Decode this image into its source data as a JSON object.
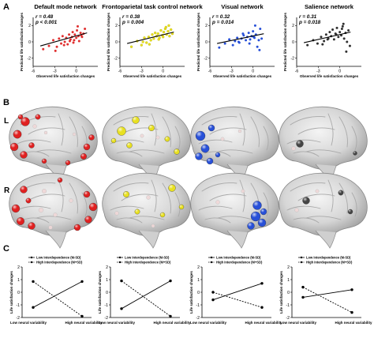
{
  "panel_labels": [
    "A",
    "B",
    "C"
  ],
  "hemisphere_labels": [
    "L",
    "R"
  ],
  "panel_a": {
    "x_label": "Observed life satisfaction changes",
    "y_label": "Predicted life satisfaction changes",
    "networks": [
      {
        "title": "Default mode network",
        "r_text": "r = 0.48",
        "p_text": "p < 0.001",
        "color": "#e03030"
      },
      {
        "title": "Frontoparietal task control network",
        "r_text": "r = 0.38",
        "p_text": "p = 0.004",
        "color": "#e8e020"
      },
      {
        "title": "Visual network",
        "r_text": "r = 0.32",
        "p_text": "p = 0.014",
        "color": "#2850d8"
      },
      {
        "title": "Salience network",
        "r_text": "r = 0.31",
        "p_text": "p = 0.018",
        "color": "#303030"
      }
    ]
  },
  "panel_b": {
    "node_colors": [
      "#e02020",
      "#e8e020",
      "#2850d8",
      "#444444"
    ]
  },
  "panel_c": {
    "y_label": "Life satisfaction changes",
    "x_tick_labels": [
      "Low neural variability",
      "High neural variability"
    ],
    "legend_low": "Low interdependence (M-SD)",
    "legend_high": "High interdependence (M+SD)"
  },
  "chart_data": [
    {
      "type": "scatter",
      "title": "Default mode network",
      "xlabel": "Observed life satisfaction changes",
      "ylabel": "Predicted life satisfaction changes",
      "xlim": [
        -6,
        3
      ],
      "ylim": [
        -3,
        3
      ],
      "x_ticks": [
        -6,
        -3,
        0
      ],
      "y_ticks": [
        2,
        0,
        -2
      ],
      "x": [
        -4.6,
        -3.8,
        -3.2,
        -2.7,
        -2.4,
        -2.1,
        -1.9,
        -1.6,
        -1.4,
        -1.2,
        -1.0,
        -0.8,
        -0.6,
        -0.5,
        -0.3,
        -0.2,
        0.0,
        0.1,
        0.3,
        0.4,
        0.6,
        0.8,
        1.0,
        1.2,
        -1.7,
        -0.9,
        0.2,
        -2.9,
        -0.4,
        0.7
      ],
      "y": [
        -0.9,
        -0.5,
        0.2,
        -0.6,
        0.4,
        -0.2,
        0.7,
        0.0,
        0.5,
        -0.3,
        0.9,
        0.3,
        0.6,
        1.2,
        0.2,
        0.9,
        0.5,
        1.4,
        0.7,
        0.1,
        1.1,
        0.6,
        1.0,
        1.6,
        -0.4,
        0.1,
        1.9,
        -1.1,
        -0.1,
        0.8
      ],
      "fit_line": {
        "x": [
          -5,
          1.5
        ],
        "y": [
          -0.5,
          1.1
        ]
      }
    },
    {
      "type": "scatter",
      "title": "Frontoparietal task control network",
      "xlabel": "Observed life satisfaction changes",
      "ylabel": "Predicted life satisfaction changes",
      "xlim": [
        -6,
        3
      ],
      "ylim": [
        -3,
        3
      ],
      "x_ticks": [
        -6,
        -3,
        0
      ],
      "y_ticks": [
        2,
        0,
        -2
      ],
      "x": [
        -4.4,
        -3.6,
        -3.0,
        -2.6,
        -2.3,
        -2.0,
        -1.7,
        -1.5,
        -1.3,
        -1.1,
        -0.9,
        -0.7,
        -0.5,
        -0.3,
        -0.1,
        0.1,
        0.3,
        0.5,
        0.7,
        0.9,
        1.1,
        1.3,
        -1.9,
        -0.6,
        0.4,
        -2.8,
        0.0,
        0.8
      ],
      "y": [
        -0.6,
        0.1,
        -0.4,
        0.5,
        -0.1,
        0.6,
        0.2,
        0.9,
        0.4,
        1.1,
        0.7,
        1.0,
        0.5,
        1.4,
        0.8,
        1.2,
        1.6,
        0.9,
        1.3,
        0.7,
        1.5,
        1.0,
        -0.3,
        0.3,
        1.8,
        0.0,
        0.6,
        2.0
      ],
      "fit_line": {
        "x": [
          -5,
          1.5
        ],
        "y": [
          -0.2,
          1.2
        ]
      }
    },
    {
      "type": "scatter",
      "title": "Visual network",
      "xlabel": "Observed life satisfaction changes",
      "ylabel": "Predicted life satisfaction changes",
      "xlim": [
        -6,
        3
      ],
      "ylim": [
        -3,
        3
      ],
      "x_ticks": [
        -6,
        -3,
        0
      ],
      "y_ticks": [
        2,
        0,
        -2
      ],
      "x": [
        -4.7,
        -3.9,
        -3.3,
        -2.8,
        -2.5,
        -2.2,
        -1.9,
        -1.6,
        -1.3,
        -1.0,
        -0.8,
        -0.6,
        -0.4,
        -0.2,
        0.0,
        0.2,
        0.4,
        0.6,
        0.8,
        1.0,
        1.2,
        -1.4,
        -0.5,
        0.3,
        -2.0,
        0.9,
        0.1
      ],
      "y": [
        -0.7,
        -0.2,
        0.3,
        -0.4,
        0.1,
        0.5,
        -0.1,
        0.4,
        0.8,
        0.2,
        0.6,
        1.1,
        0.3,
        0.7,
        1.3,
        0.5,
        0.9,
        -0.6,
        0.2,
        1.6,
        0.4,
        1.0,
        -0.2,
        2.0,
        0.0,
        -1.0,
        0.6
      ],
      "fit_line": {
        "x": [
          -5,
          1.5
        ],
        "y": [
          -0.2,
          1.0
        ]
      }
    },
    {
      "type": "scatter",
      "title": "Salience network",
      "xlabel": "Observed life satisfaction changes",
      "ylabel": "Predicted life satisfaction changes",
      "xlim": [
        -6,
        3
      ],
      "ylim": [
        -3,
        3
      ],
      "x_ticks": [
        -6,
        -3,
        0
      ],
      "y_ticks": [
        2,
        0,
        -2
      ],
      "x": [
        -4.5,
        -3.7,
        -3.1,
        -2.6,
        -2.2,
        -1.9,
        -1.6,
        -1.4,
        -1.2,
        -1.0,
        -0.8,
        -0.6,
        -0.4,
        -0.2,
        0.0,
        0.2,
        0.4,
        0.6,
        0.8,
        1.0,
        1.2,
        1.4,
        -1.7,
        -0.5,
        0.3,
        -2.4,
        0.5,
        0.9
      ],
      "y": [
        -0.4,
        0.2,
        -0.2,
        0.6,
        0.1,
        0.9,
        0.4,
        1.2,
        0.7,
        1.5,
        0.3,
        1.0,
        1.7,
        0.6,
        1.2,
        0.8,
        1.9,
        0.4,
        1.1,
        0.0,
        1.4,
        -0.5,
        0.3,
        0.9,
        1.6,
        -0.3,
        2.2,
        -1.2
      ],
      "fit_line": {
        "x": [
          -5,
          1.5
        ],
        "y": [
          -0.1,
          1.2
        ]
      }
    },
    {
      "type": "line",
      "ylabel": "Life satisfaction changes",
      "categories": [
        "Low neural variability",
        "High neural variability"
      ],
      "ylim": [
        -2,
        2
      ],
      "y_ticks": [
        2,
        1,
        0,
        -1,
        -2
      ],
      "series": [
        {
          "name": "Low interdependence (M-SD)",
          "values": [
            -1.2,
            0.85
          ]
        },
        {
          "name": "High interdependence (M+SD)",
          "values": [
            0.85,
            -1.9
          ]
        }
      ]
    },
    {
      "type": "line",
      "ylabel": "Life satisfaction changes",
      "categories": [
        "Low neural variability",
        "High neural variability"
      ],
      "ylim": [
        -2,
        2
      ],
      "y_ticks": [
        2,
        1,
        0,
        -1,
        -2
      ],
      "series": [
        {
          "name": "Low interdependence (M-SD)",
          "values": [
            -1.3,
            0.9
          ]
        },
        {
          "name": "High interdependence (M+SD)",
          "values": [
            0.9,
            -1.9
          ]
        }
      ]
    },
    {
      "type": "line",
      "ylabel": "Life satisfaction changes",
      "categories": [
        "Low neural variability",
        "High neural variability"
      ],
      "ylim": [
        -2,
        2
      ],
      "y_ticks": [
        2,
        1,
        0,
        -1,
        -2
      ],
      "series": [
        {
          "name": "Low interdependence (M-SD)",
          "values": [
            -0.6,
            0.7
          ]
        },
        {
          "name": "High interdependence (M+SD)",
          "values": [
            0.0,
            -1.2
          ]
        }
      ]
    },
    {
      "type": "line",
      "ylabel": "Life satisfaction changes",
      "categories": [
        "Low neural variability",
        "High neural variability"
      ],
      "ylim": [
        -2,
        2
      ],
      "y_ticks": [
        2,
        1,
        0,
        -1,
        -2
      ],
      "series": [
        {
          "name": "Low interdependence (M-SD)",
          "values": [
            -0.4,
            0.2
          ]
        },
        {
          "name": "High interdependence (M+SD)",
          "values": [
            0.4,
            -1.6
          ]
        }
      ]
    }
  ]
}
